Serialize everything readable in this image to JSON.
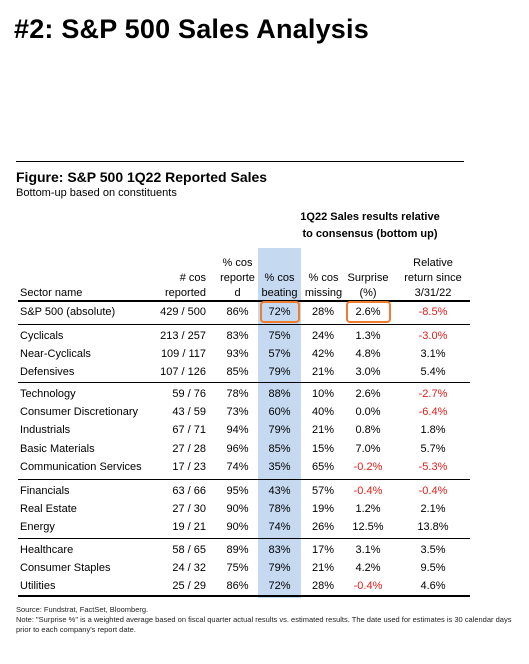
{
  "page": {
    "title": "#2: S&P 500 Sales Analysis"
  },
  "figure": {
    "title": "Figure: S&P 500 1Q22 Reported Sales",
    "subtitle": "Bottom-up based on constituents",
    "group_header": [
      "1Q22 Sales results relative",
      "to consensus (bottom up)"
    ],
    "columns": {
      "sector": [
        "Sector name"
      ],
      "num": [
        "# cos",
        "reported"
      ],
      "reported": [
        "% cos",
        "reporte",
        "d"
      ],
      "beating": [
        "% cos",
        "beating"
      ],
      "missing": [
        "% cos",
        "missing"
      ],
      "surprise": [
        "Surprise",
        "(%)"
      ],
      "relative": [
        "Relative",
        "return since",
        "3/31/22"
      ]
    },
    "highlight_color": "#ee7d31",
    "band_color": "#c5d9f0",
    "negative_color": "#e0201b"
  },
  "chart_data": {
    "type": "table",
    "title": "Figure: S&P 500 1Q22 Reported Sales",
    "rows": [
      {
        "sector": "S&P 500 (absolute)",
        "num": "429 / 500",
        "reported": "86%",
        "beating": "72%",
        "missing": "28%",
        "surprise": "2.6%",
        "relative": "-8.5%"
      },
      {
        "sector": "Cyclicals",
        "num": "213 / 257",
        "reported": "83%",
        "beating": "75%",
        "missing": "24%",
        "surprise": "1.3%",
        "relative": "-3.0%"
      },
      {
        "sector": "Near-Cyclicals",
        "num": "109 / 117",
        "reported": "93%",
        "beating": "57%",
        "missing": "42%",
        "surprise": "4.8%",
        "relative": "3.1%"
      },
      {
        "sector": "Defensives",
        "num": "107 / 126",
        "reported": "85%",
        "beating": "79%",
        "missing": "21%",
        "surprise": "3.0%",
        "relative": "5.4%"
      },
      {
        "sector": "Technology",
        "num": "59 / 76",
        "reported": "78%",
        "beating": "88%",
        "missing": "10%",
        "surprise": "2.6%",
        "relative": "-2.7%"
      },
      {
        "sector": "Consumer Discretionary",
        "num": "43 / 59",
        "reported": "73%",
        "beating": "60%",
        "missing": "40%",
        "surprise": "0.0%",
        "relative": "-6.4%"
      },
      {
        "sector": "Industrials",
        "num": "67 / 71",
        "reported": "94%",
        "beating": "79%",
        "missing": "21%",
        "surprise": "0.8%",
        "relative": "1.8%"
      },
      {
        "sector": "Basic Materials",
        "num": "27 / 28",
        "reported": "96%",
        "beating": "85%",
        "missing": "15%",
        "surprise": "7.0%",
        "relative": "5.7%"
      },
      {
        "sector": "Communication Services",
        "num": "17 / 23",
        "reported": "74%",
        "beating": "35%",
        "missing": "65%",
        "surprise": "-0.2%",
        "relative": "-5.3%"
      },
      {
        "sector": "Financials",
        "num": "63 / 66",
        "reported": "95%",
        "beating": "43%",
        "missing": "57%",
        "surprise": "-0.4%",
        "relative": "-0.4%"
      },
      {
        "sector": "Real Estate",
        "num": "27 / 30",
        "reported": "90%",
        "beating": "78%",
        "missing": "19%",
        "surprise": "1.2%",
        "relative": "2.1%"
      },
      {
        "sector": "Energy",
        "num": "19 / 21",
        "reported": "90%",
        "beating": "74%",
        "missing": "26%",
        "surprise": "12.5%",
        "relative": "13.8%"
      },
      {
        "sector": "Healthcare",
        "num": "58 / 65",
        "reported": "89%",
        "beating": "83%",
        "missing": "17%",
        "surprise": "3.1%",
        "relative": "3.5%"
      },
      {
        "sector": "Consumer Staples",
        "num": "24 / 32",
        "reported": "75%",
        "beating": "79%",
        "missing": "21%",
        "surprise": "4.2%",
        "relative": "9.5%"
      },
      {
        "sector": "Utilities",
        "num": "25 / 29",
        "reported": "86%",
        "beating": "72%",
        "missing": "28%",
        "surprise": "-0.4%",
        "relative": "4.6%"
      }
    ]
  },
  "footer": {
    "source": "Source: Fundstrat, FactSet, Bloomberg.",
    "note": "Note: \"Surprise %\" is a weighted average based on fiscal quarter actual results vs. estimated results.  The date used for estimates is 30 calendar days prior to each company's report date."
  }
}
